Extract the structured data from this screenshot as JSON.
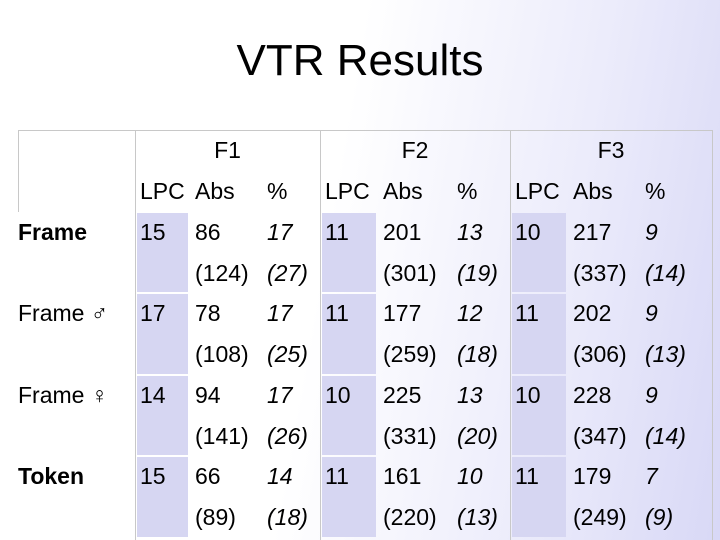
{
  "title": "VTR Results",
  "table": {
    "groups": [
      "F1",
      "F2",
      "F3"
    ],
    "columns": [
      "LPC",
      "Abs",
      "%"
    ],
    "rows": [
      {
        "label": "Frame",
        "cells": [
          [
            "15",
            "86",
            "17",
            "(124)",
            "(27)"
          ],
          [
            "11",
            "201",
            "13",
            "(301)",
            "(19)"
          ],
          [
            "10",
            "217",
            "9",
            "(337)",
            "(14)"
          ]
        ]
      },
      {
        "label": "Frame ♂",
        "cells": [
          [
            "17",
            "78",
            "17",
            "(108)",
            "(25)"
          ],
          [
            "11",
            "177",
            "12",
            "(259)",
            "(18)"
          ],
          [
            "11",
            "202",
            "9",
            "(306)",
            "(13)"
          ]
        ]
      },
      {
        "label": "Frame ♀",
        "cells": [
          [
            "14",
            "94",
            "17",
            "(141)",
            "(26)"
          ],
          [
            "10",
            "225",
            "13",
            "(331)",
            "(20)"
          ],
          [
            "10",
            "228",
            "9",
            "(347)",
            "(14)"
          ]
        ]
      },
      {
        "label": "Token",
        "cells": [
          [
            "15",
            "66",
            "14",
            "(89)",
            "(18)"
          ],
          [
            "11",
            "161",
            "10",
            "(220)",
            "(13)"
          ],
          [
            "11",
            "179",
            "7",
            "(249)",
            "(9)"
          ]
        ]
      }
    ]
  }
}
